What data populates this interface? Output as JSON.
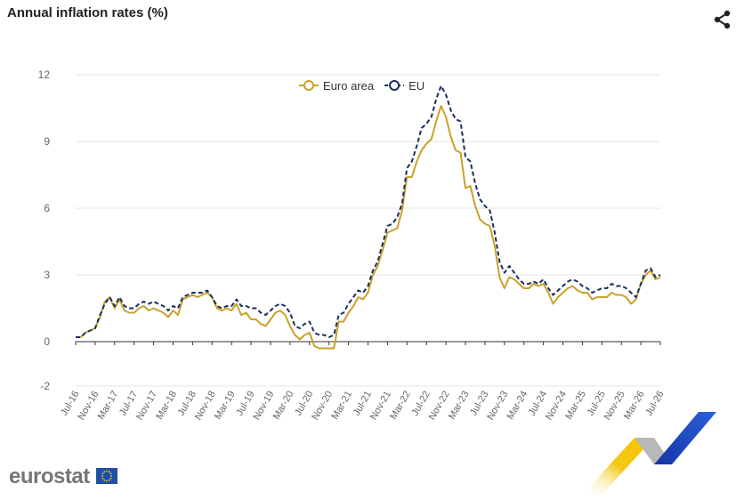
{
  "header": {
    "title": "Annual inflation rates (%)",
    "share_icon": "share-icon"
  },
  "branding": {
    "logo_text": "eurostat",
    "flag_icon": "eu-flag-icon"
  },
  "colors": {
    "euro_area": "#c9a227",
    "eu": "#1a2f5e",
    "grid": "#e6e6e6",
    "axis": "#333333"
  },
  "chart_data": {
    "type": "line",
    "title": "Annual inflation rates (%)",
    "xlabel": "",
    "ylabel": "",
    "ylim": [
      -2,
      12
    ],
    "yticks": [
      -2,
      0,
      3,
      6,
      9,
      12
    ],
    "grid": true,
    "legend_position": "top-center",
    "x": [
      "Jul-16",
      "Aug-16",
      "Sep-16",
      "Oct-16",
      "Nov-16",
      "Dec-16",
      "Jan-17",
      "Feb-17",
      "Mar-17",
      "Apr-17",
      "May-17",
      "Jun-17",
      "Jul-17",
      "Aug-17",
      "Sep-17",
      "Oct-17",
      "Nov-17",
      "Dec-17",
      "Jan-18",
      "Feb-18",
      "Mar-18",
      "Apr-18",
      "May-18",
      "Jun-18",
      "Jul-18",
      "Aug-18",
      "Sep-18",
      "Oct-18",
      "Nov-18",
      "Dec-18",
      "Jan-19",
      "Feb-19",
      "Mar-19",
      "Apr-19",
      "May-19",
      "Jun-19",
      "Jul-19",
      "Aug-19",
      "Sep-19",
      "Oct-19",
      "Nov-19",
      "Dec-19",
      "Jan-20",
      "Feb-20",
      "Mar-20",
      "Apr-20",
      "May-20",
      "Jun-20",
      "Jul-20",
      "Aug-20",
      "Sep-20",
      "Oct-20",
      "Nov-20",
      "Dec-20",
      "Jan-21",
      "Feb-21",
      "Mar-21",
      "Apr-21",
      "May-21",
      "Jun-21",
      "Jul-21",
      "Aug-21",
      "Sep-21",
      "Oct-21",
      "Nov-21",
      "Dec-21",
      "Jan-22",
      "Feb-22",
      "Mar-22",
      "Apr-22",
      "May-22",
      "Jun-22",
      "Jul-22",
      "Aug-22",
      "Sep-22",
      "Oct-22",
      "Nov-22",
      "Dec-22",
      "Jan-23",
      "Feb-23",
      "Mar-23",
      "Apr-23",
      "May-23",
      "Jun-23",
      "Jul-23",
      "Aug-23",
      "Sep-23",
      "Oct-23",
      "Nov-23",
      "Dec-23",
      "Jan-24",
      "Feb-24",
      "Mar-24",
      "Apr-24",
      "May-24",
      "Jun-24",
      "Jul-24",
      "Aug-24",
      "Sep-24",
      "Oct-24",
      "Nov-24",
      "Dec-24",
      "Jan-25",
      "Feb-25",
      "Mar-25",
      "Apr-25",
      "May-25",
      "Jun-25",
      "Jul-25",
      "Aug-25",
      "Sep-25",
      "Oct-25",
      "Nov-25",
      "Dec-25",
      "Jan-26",
      "Feb-26",
      "Mar-26",
      "Apr-26",
      "May-26",
      "Jun-26",
      "Jul-26"
    ],
    "xtick_labels": [
      "Jul-16",
      "Nov-16",
      "Mar-17",
      "Jul-17",
      "Nov-17",
      "Mar-18",
      "Jul-18",
      "Nov-18",
      "Mar-19",
      "Jul-19",
      "Nov-19",
      "Mar-20",
      "Jul-20",
      "Nov-20",
      "Mar-21",
      "Jul-21",
      "Nov-21",
      "Mar-22",
      "Jul-22",
      "Nov-22",
      "Mar-23",
      "Jul-23",
      "Nov-23",
      "Mar-24",
      "Jul-24",
      "Nov-24",
      "Mar-25",
      "Jul-25",
      "Nov-25",
      "Mar-26",
      "Jul-26"
    ],
    "series": [
      {
        "name": "Euro area",
        "style": "solid",
        "values": [
          0.2,
          0.2,
          0.4,
          0.5,
          0.6,
          1.1,
          1.8,
          2.0,
          1.5,
          1.9,
          1.4,
          1.3,
          1.3,
          1.5,
          1.6,
          1.4,
          1.5,
          1.4,
          1.3,
          1.1,
          1.4,
          1.2,
          1.9,
          2.0,
          2.1,
          2.0,
          2.1,
          2.2,
          2.0,
          1.5,
          1.4,
          1.5,
          1.4,
          1.7,
          1.2,
          1.3,
          1.0,
          1.0,
          0.8,
          0.7,
          1.0,
          1.3,
          1.4,
          1.2,
          0.7,
          0.3,
          0.1,
          0.3,
          0.4,
          -0.2,
          -0.3,
          -0.3,
          -0.3,
          -0.3,
          0.9,
          0.9,
          1.3,
          1.6,
          2.0,
          1.9,
          2.2,
          3.0,
          3.4,
          4.1,
          4.9,
          5.0,
          5.1,
          5.9,
          7.4,
          7.4,
          8.1,
          8.6,
          8.9,
          9.1,
          9.9,
          10.6,
          10.1,
          9.2,
          8.6,
          8.5,
          6.9,
          7.0,
          6.1,
          5.5,
          5.3,
          5.2,
          4.3,
          2.9,
          2.4,
          2.9,
          2.8,
          2.6,
          2.4,
          2.4,
          2.6,
          2.5,
          2.6,
          2.2,
          1.7,
          2.0,
          2.2,
          2.4,
          2.5,
          2.3,
          2.2,
          2.2,
          1.9,
          2.0,
          2.0,
          2.0,
          2.2,
          2.1,
          2.1,
          2.0,
          1.7,
          1.9,
          2.6,
          3.0,
          3.2,
          2.8,
          2.9
        ]
      },
      {
        "name": "EU",
        "style": "dashed",
        "values": [
          0.2,
          0.2,
          0.4,
          0.5,
          0.6,
          1.2,
          1.7,
          2.0,
          1.6,
          2.0,
          1.6,
          1.5,
          1.5,
          1.7,
          1.8,
          1.7,
          1.8,
          1.7,
          1.6,
          1.4,
          1.6,
          1.5,
          2.0,
          2.1,
          2.2,
          2.2,
          2.2,
          2.3,
          2.0,
          1.6,
          1.5,
          1.6,
          1.6,
          1.9,
          1.6,
          1.6,
          1.5,
          1.5,
          1.3,
          1.2,
          1.4,
          1.6,
          1.7,
          1.6,
          1.3,
          0.7,
          0.6,
          0.8,
          0.9,
          0.4,
          0.3,
          0.3,
          0.2,
          0.3,
          1.2,
          1.3,
          1.7,
          2.0,
          2.3,
          2.2,
          2.5,
          3.2,
          3.6,
          4.4,
          5.2,
          5.3,
          5.6,
          6.2,
          7.8,
          8.1,
          8.8,
          9.6,
          9.8,
          10.1,
          10.9,
          11.5,
          11.1,
          10.4,
          10.0,
          9.9,
          8.3,
          8.1,
          7.1,
          6.4,
          6.1,
          5.9,
          4.9,
          3.6,
          3.1,
          3.4,
          3.1,
          2.8,
          2.6,
          2.6,
          2.7,
          2.6,
          2.8,
          2.4,
          2.1,
          2.3,
          2.5,
          2.7,
          2.8,
          2.7,
          2.5,
          2.4,
          2.2,
          2.3,
          2.4,
          2.4,
          2.6,
          2.5,
          2.5,
          2.4,
          2.2,
          2.0,
          2.6,
          3.2,
          3.3,
          2.9,
          3.0
        ]
      }
    ]
  }
}
